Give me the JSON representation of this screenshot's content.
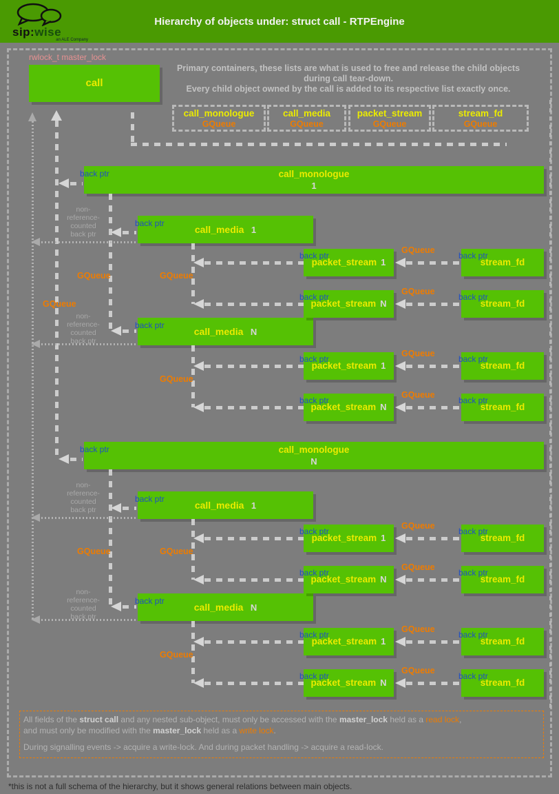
{
  "header": {
    "title": "Hierarchy of objects under: struct call - RTPEngine",
    "logo_sip": "sip:",
    "logo_wise": "wise",
    "logo_tagline": "an ALE Company"
  },
  "lock_label": "rwlock_t master_lock",
  "call_box": {
    "label": "call"
  },
  "intro": {
    "line1": "Primary containers, these lists are what is used to free and release the child objects",
    "line2": "during call tear-down.",
    "line3": "Every child object owned by the call is added to its respective list exactly once."
  },
  "legend": [
    {
      "name": "call_monologue",
      "type": "GQueue"
    },
    {
      "name": "call_media",
      "type": "GQueue"
    },
    {
      "name": "packet_stream",
      "type": "GQueue"
    },
    {
      "name": "stream_fd",
      "type": "GQueue"
    }
  ],
  "labels": {
    "back_ptr": "back ptr",
    "gqueue": "GQueue",
    "non_ref": [
      "non-",
      "reference-",
      "counted",
      "back ptr"
    ]
  },
  "groups": [
    {
      "monologue": {
        "label": "call_monologue",
        "num": "1"
      },
      "media": [
        {
          "label": "call_media",
          "num": "1"
        },
        {
          "label": "call_media",
          "num": "N"
        }
      ],
      "streams": [
        {
          "ps": "packet_stream",
          "num": "1",
          "sfd": "stream_fd"
        },
        {
          "ps": "packet_stream",
          "num": "N",
          "sfd": "stream_fd"
        },
        {
          "ps": "packet_stream",
          "num": "1",
          "sfd": "stream_fd"
        },
        {
          "ps": "packet_stream",
          "num": "N",
          "sfd": "stream_fd"
        }
      ]
    },
    {
      "monologue": {
        "label": "call_monologue",
        "num": "N"
      },
      "media": [
        {
          "label": "call_media",
          "num": "1"
        },
        {
          "label": "call_media",
          "num": "N"
        }
      ],
      "streams": [
        {
          "ps": "packet_stream",
          "num": "1",
          "sfd": "stream_fd"
        },
        {
          "ps": "packet_stream",
          "num": "N",
          "sfd": "stream_fd"
        },
        {
          "ps": "packet_stream",
          "num": "1",
          "sfd": "stream_fd"
        },
        {
          "ps": "packet_stream",
          "num": "N",
          "sfd": "stream_fd"
        }
      ]
    }
  ],
  "note": {
    "p1a": "All fields of the ",
    "p1b": "struct call",
    "p1c": " and any nested sub-object, must only be accessed with the ",
    "p1d": "master_lock",
    "p1e": " held as a ",
    "p1f": "read lock",
    "p1g": ",",
    "p2a": "and must only be modified with the ",
    "p2b": "master_lock",
    "p2c": " held as a ",
    "p2d": "write lock",
    "p2e": ".",
    "p3": "During signalling events -> acquire a write-lock. And during packet handling -> acquire a read-lock."
  },
  "footer": "*this is not a full schema of the hierarchy, but it shows general relations between main objects."
}
